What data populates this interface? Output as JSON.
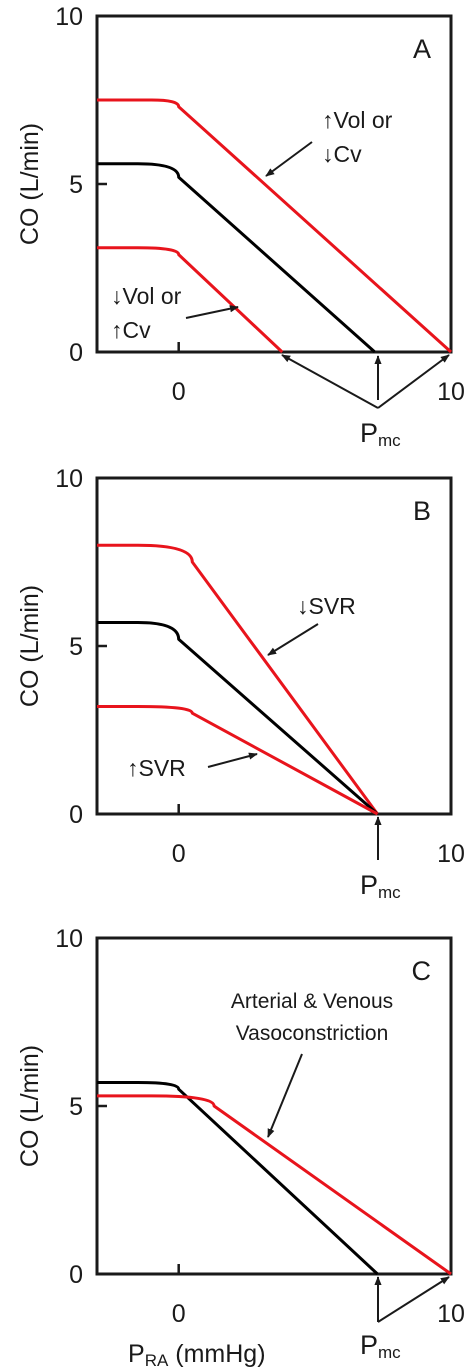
{
  "figure": {
    "panels": [
      {
        "id": "A",
        "letter": "A",
        "ylabel": "CO  (L/min)",
        "xlabel": "",
        "y_ticks": [
          "0",
          "5",
          "10"
        ],
        "x_ticks": [
          "0",
          "10"
        ],
        "pmc_main": "P",
        "pmc_sub": "mc",
        "annotations": [
          {
            "lines": [
              "↑Vol or",
              "↓Cv"
            ]
          },
          {
            "lines": [
              "↓Vol or",
              "↑Cv"
            ]
          }
        ]
      },
      {
        "id": "B",
        "letter": "B",
        "ylabel": "CO  (L/min)",
        "xlabel": "",
        "y_ticks": [
          "0",
          "5",
          "10"
        ],
        "x_ticks": [
          "0",
          "10"
        ],
        "pmc_main": "P",
        "pmc_sub": "mc",
        "annotations": [
          {
            "lines": [
              "↓SVR"
            ]
          },
          {
            "lines": [
              "↑SVR"
            ]
          }
        ]
      },
      {
        "id": "C",
        "letter": "C",
        "ylabel": "CO  (L/min)",
        "xlabel_main": "P",
        "xlabel_sub": "RA",
        "xlabel_rest": " (mmHg)",
        "y_ticks": [
          "0",
          "5",
          "10"
        ],
        "x_ticks": [
          "0",
          "10"
        ],
        "pmc_main": "P",
        "pmc_sub": "mc",
        "annotations": [
          {
            "lines": [
              "Arterial & Venous",
              "Vasoconstriction"
            ]
          }
        ]
      }
    ],
    "colors": {
      "baseline": "#000000",
      "altered": "#e8141c",
      "axes": "#1a1a1a"
    }
  },
  "chart_data": [
    {
      "type": "line",
      "panel": "A",
      "xlim": [
        -3,
        10
      ],
      "ylim": [
        0,
        10
      ],
      "series": [
        {
          "color": "#e8141c",
          "x": [
            -3,
            -1,
            0,
            10
          ],
          "y": [
            7.5,
            7.5,
            7.3,
            0
          ]
        },
        {
          "color": "#000000",
          "x": [
            -3,
            -1.5,
            0,
            7.2
          ],
          "y": [
            5.6,
            5.6,
            5.2,
            0
          ]
        },
        {
          "color": "#e8141c",
          "x": [
            -3,
            -1.5,
            0,
            3.8
          ],
          "y": [
            3.1,
            3.1,
            2.9,
            0
          ]
        }
      ]
    },
    {
      "type": "line",
      "panel": "B",
      "xlim": [
        -3,
        10
      ],
      "ylim": [
        0,
        10
      ],
      "series": [
        {
          "color": "#e8141c",
          "x": [
            -3,
            -1.5,
            0.5,
            7.3
          ],
          "y": [
            8.0,
            8.0,
            7.5,
            0
          ]
        },
        {
          "color": "#000000",
          "x": [
            -3,
            -1.5,
            0,
            7.3
          ],
          "y": [
            5.7,
            5.7,
            5.2,
            0
          ]
        },
        {
          "color": "#e8141c",
          "x": [
            -3,
            -1.5,
            0.5,
            7.3
          ],
          "y": [
            3.2,
            3.2,
            3.0,
            0
          ]
        }
      ]
    },
    {
      "type": "line",
      "panel": "C",
      "xlim": [
        -3,
        10
      ],
      "ylim": [
        0,
        10
      ],
      "series": [
        {
          "color": "#000000",
          "x": [
            -3,
            -1.5,
            0,
            7.3
          ],
          "y": [
            5.7,
            5.7,
            5.5,
            0
          ]
        },
        {
          "color": "#e8141c",
          "x": [
            -3,
            -1,
            1.3,
            10
          ],
          "y": [
            5.3,
            5.3,
            5.0,
            0
          ]
        }
      ]
    }
  ]
}
